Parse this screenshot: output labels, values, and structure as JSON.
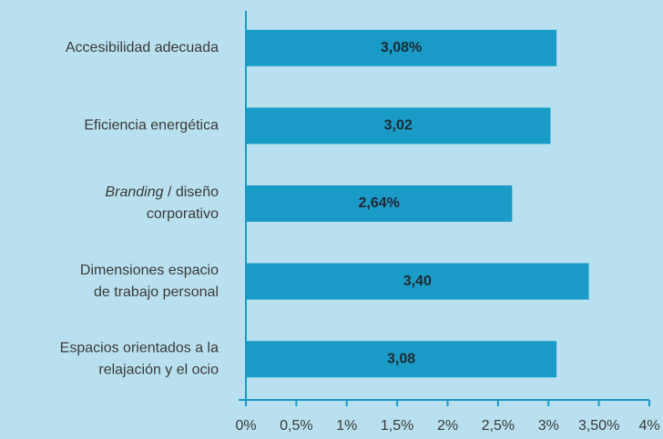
{
  "chart_data": {
    "type": "barh",
    "categories": [
      [
        "Accesibilidad adecuada"
      ],
      [
        "Eficiencia energética"
      ],
      [
        [
          {
            "text": "Branding",
            "italic": true
          },
          {
            "text": " / diseño"
          }
        ],
        "corporativo"
      ],
      [
        "Dimensiones espacio",
        "de trabajo personal"
      ],
      [
        "Espacios orientados a la",
        "relajación y el ocio"
      ]
    ],
    "values": [
      3.08,
      3.02,
      2.64,
      3.4,
      3.08
    ],
    "value_labels": [
      "3,08%",
      "3,02",
      "2,64%",
      "3,40",
      "3,08"
    ],
    "color": "#1a9ac6",
    "xlim": [
      0,
      4
    ],
    "xticks": [
      {
        "value": 0,
        "label": "0%"
      },
      {
        "value": 0.5,
        "label": "0,5%"
      },
      {
        "value": 1,
        "label": "1%"
      },
      {
        "value": 1.5,
        "label": "1,5%"
      },
      {
        "value": 2,
        "label": "2%"
      },
      {
        "value": 2.5,
        "label": "2,5%"
      },
      {
        "value": 3,
        "label": "3%"
      },
      {
        "value": 3.5,
        "label": "3,50%"
      },
      {
        "value": 4,
        "label": "4%"
      }
    ]
  }
}
